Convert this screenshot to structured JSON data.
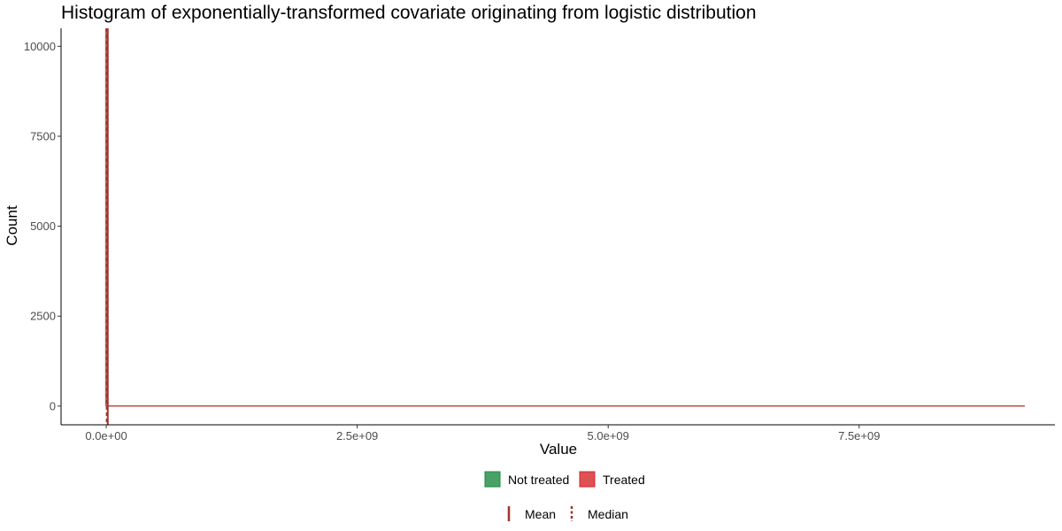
{
  "chart_data": {
    "type": "bar",
    "title": "Histogram of exponentially-transformed covariate originating from logistic distribution",
    "xlabel": "Value",
    "ylabel": "Count",
    "x_ticks": [
      {
        "value": 0,
        "label": "0.0e+00"
      },
      {
        "value": 2500000000,
        "label": "2.5e+09"
      },
      {
        "value": 5000000000,
        "label": "5.0e+09"
      },
      {
        "value": 7500000000,
        "label": "7.5e+09"
      }
    ],
    "y_ticks": [
      {
        "value": 0,
        "label": "0"
      },
      {
        "value": 2500,
        "label": "2500"
      },
      {
        "value": 5000,
        "label": "5000"
      },
      {
        "value": 7500,
        "label": "7500"
      },
      {
        "value": 10000,
        "label": "10000"
      }
    ],
    "xlim": [
      -450000000,
      9450000000
    ],
    "ylim": [
      -520,
      10500
    ],
    "x_data_range": [
      0,
      9150000000
    ],
    "series": [
      {
        "name": "Not treated",
        "color": "#1b8a3f",
        "peak_x": 0,
        "peak_count": 10500
      },
      {
        "name": "Treated",
        "color": "#d62728",
        "peak_x": 0,
        "peak_count": 10500
      }
    ],
    "reference_lines": [
      {
        "name": "Mean",
        "value": 15000000,
        "style": "solid",
        "color": "#a0342c"
      },
      {
        "name": "Median",
        "value": 5000000,
        "style": "dashed",
        "color": "#a0342c"
      }
    ],
    "legend_position": "bottom",
    "grid": false
  }
}
